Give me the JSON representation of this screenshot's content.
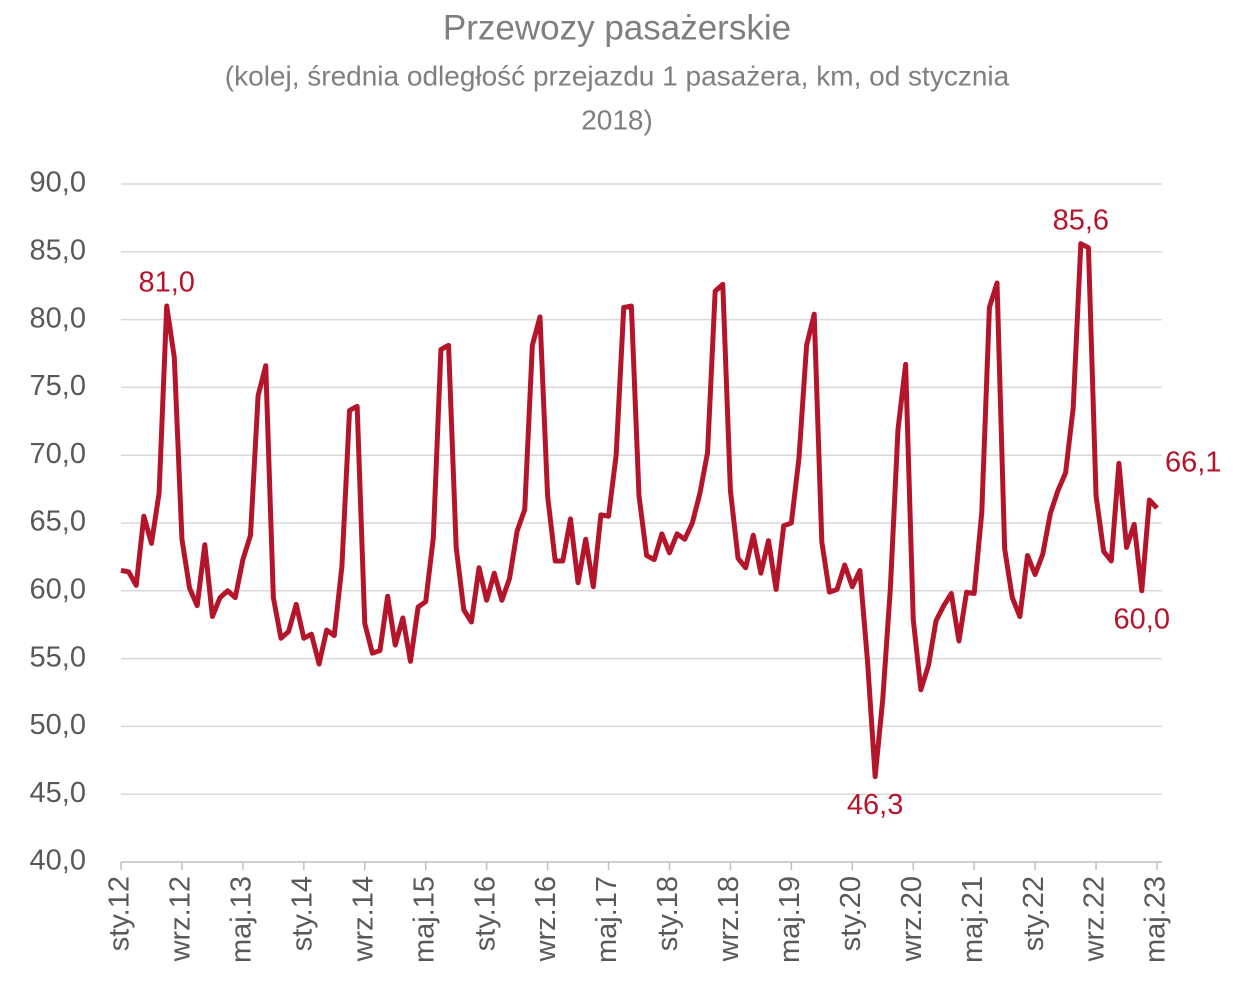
{
  "chart_data": {
    "type": "line",
    "title": "Przewozy pasażerskie",
    "subtitle": [
      "(kolej, średnia odległość przejazdu 1 pasażera, km, od stycznia",
      "2018)"
    ],
    "categories": [
      "sty.12",
      null,
      null,
      null,
      null,
      null,
      null,
      null,
      "wrz.12",
      null,
      null,
      null,
      null,
      null,
      null,
      null,
      "maj.13",
      null,
      null,
      null,
      null,
      null,
      null,
      null,
      "sty.14",
      null,
      null,
      null,
      null,
      null,
      null,
      null,
      "wrz.14",
      null,
      null,
      null,
      null,
      null,
      null,
      null,
      "maj.15",
      null,
      null,
      null,
      null,
      null,
      null,
      null,
      "sty.16",
      null,
      null,
      null,
      null,
      null,
      null,
      null,
      "wrz.16",
      null,
      null,
      null,
      null,
      null,
      null,
      null,
      "maj.17",
      null,
      null,
      null,
      null,
      null,
      null,
      null,
      "sty.18",
      null,
      null,
      null,
      null,
      null,
      null,
      null,
      "wrz.18",
      null,
      null,
      null,
      null,
      null,
      null,
      null,
      "maj.19",
      null,
      null,
      null,
      null,
      null,
      null,
      null,
      "sty.20",
      null,
      null,
      null,
      null,
      null,
      null,
      null,
      "wrz.20",
      null,
      null,
      null,
      null,
      null,
      null,
      null,
      "maj.21",
      null,
      null,
      null,
      null,
      null,
      null,
      null,
      "sty.22",
      null,
      null,
      null,
      null,
      null,
      null,
      null,
      "wrz.22",
      null,
      null,
      null,
      null,
      null,
      null,
      null,
      "maj.23"
    ],
    "values": [
      61.5,
      61.4,
      60.4,
      65.5,
      63.5,
      67.2,
      81.0,
      77.2,
      63.8,
      60.2,
      58.9,
      63.4,
      58.1,
      59.5,
      60.0,
      59.5,
      62.3,
      64.1,
      74.4,
      76.6,
      59.5,
      56.5,
      57.0,
      59.0,
      56.5,
      56.8,
      54.6,
      57.1,
      56.7,
      61.8,
      73.3,
      73.6,
      57.6,
      55.4,
      55.6,
      59.6,
      56.0,
      58.0,
      54.8,
      58.8,
      59.2,
      63.9,
      77.8,
      78.1,
      63.2,
      58.6,
      57.7,
      61.7,
      59.3,
      61.3,
      59.3,
      60.9,
      64.4,
      66.0,
      78.1,
      80.2,
      67.0,
      62.2,
      62.2,
      65.3,
      60.6,
      63.8,
      60.3,
      65.6,
      65.5,
      70.0,
      80.9,
      81.0,
      67.0,
      62.6,
      62.3,
      64.2,
      62.8,
      64.2,
      63.8,
      65.0,
      67.2,
      70.2,
      82.1,
      82.6,
      67.4,
      62.4,
      61.7,
      64.1,
      61.3,
      63.7,
      60.1,
      64.8,
      65.0,
      69.8,
      78.1,
      80.4,
      63.6,
      59.9,
      60.1,
      61.9,
      60.3,
      61.5,
      54.8,
      46.3,
      52.0,
      60.2,
      71.9,
      76.7,
      57.9,
      52.7,
      54.5,
      57.8,
      58.9,
      59.8,
      56.3,
      59.9,
      59.8,
      65.8,
      80.9,
      82.7,
      63.1,
      59.5,
      58.1,
      62.6,
      61.2,
      62.7,
      65.7,
      67.4,
      68.7,
      73.5,
      85.6,
      85.3,
      67.0,
      62.9,
      62.2,
      69.4,
      63.2,
      64.9,
      60.0,
      66.7,
      66.1
    ],
    "value_labels": [
      null,
      null,
      null,
      null,
      null,
      null,
      "81,0",
      null,
      null,
      null,
      null,
      null,
      null,
      null,
      null,
      null,
      null,
      null,
      null,
      null,
      null,
      null,
      null,
      null,
      null,
      null,
      null,
      null,
      null,
      null,
      null,
      null,
      null,
      null,
      null,
      null,
      null,
      null,
      null,
      null,
      null,
      null,
      null,
      null,
      null,
      null,
      null,
      null,
      null,
      null,
      null,
      null,
      null,
      null,
      null,
      null,
      null,
      null,
      null,
      null,
      null,
      null,
      null,
      null,
      null,
      null,
      null,
      null,
      null,
      null,
      null,
      null,
      null,
      null,
      null,
      null,
      null,
      null,
      null,
      null,
      null,
      null,
      null,
      null,
      null,
      null,
      null,
      null,
      null,
      null,
      null,
      null,
      null,
      null,
      null,
      null,
      null,
      null,
      null,
      "46,3",
      null,
      null,
      null,
      null,
      null,
      null,
      null,
      null,
      null,
      null,
      null,
      null,
      null,
      null,
      null,
      null,
      null,
      null,
      null,
      null,
      null,
      null,
      null,
      null,
      null,
      null,
      "85,6",
      null,
      null,
      null,
      null,
      null,
      null,
      null,
      "60,0",
      null,
      "66,1"
    ],
    "color": "#b5152b",
    "ylim": [
      40,
      90
    ],
    "yticks": [
      {
        "value": 40,
        "label": "40,0"
      },
      {
        "value": 45,
        "label": "45,0"
      },
      {
        "value": 50,
        "label": "50,0"
      },
      {
        "value": 55,
        "label": "55,0"
      },
      {
        "value": 60,
        "label": "60,0"
      },
      {
        "value": 65,
        "label": "65,0"
      },
      {
        "value": 70,
        "label": "70,0"
      },
      {
        "value": 75,
        "label": "75,0"
      },
      {
        "value": 80,
        "label": "80,0"
      },
      {
        "value": 85,
        "label": "85,0"
      },
      {
        "value": 90,
        "label": "90,0"
      }
    ],
    "grid": true
  }
}
